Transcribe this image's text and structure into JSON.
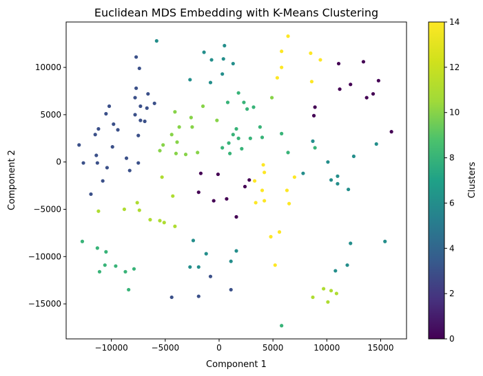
{
  "chart_data": {
    "type": "scatter",
    "title": "Euclidean MDS Embedding with K-Means Clustering",
    "xlabel": "Component 1",
    "ylabel": "Component 2",
    "xlim": [
      -14200,
      17400
    ],
    "ylim": [
      -18700,
      14800
    ],
    "xticks": [
      -10000,
      -5000,
      0,
      5000,
      10000,
      15000
    ],
    "xtick_labels": [
      "−10000",
      "−5000",
      "0",
      "5000",
      "10000",
      "15000"
    ],
    "yticks": [
      -15000,
      -10000,
      -5000,
      0,
      5000,
      10000
    ],
    "ytick_labels": [
      "−15000",
      "−10000",
      "−5000",
      "0",
      "5000",
      "10000"
    ],
    "grid": false,
    "colormap": "viridis",
    "colorbar": {
      "label": "Clusters",
      "range": [
        0,
        14
      ],
      "ticks": [
        0,
        2,
        4,
        6,
        8,
        10,
        12,
        14
      ],
      "tick_labels": [
        "0",
        "2",
        "4",
        "6",
        "8",
        "10",
        "12",
        "14"
      ]
    },
    "points": [
      {
        "x": 6400,
        "y": 13300,
        "c": 14
      },
      {
        "x": 5800,
        "y": 11700,
        "c": 14
      },
      {
        "x": 8500,
        "y": 11500,
        "c": 14
      },
      {
        "x": 9400,
        "y": 10800,
        "c": 14
      },
      {
        "x": 5800,
        "y": 10000,
        "c": 14
      },
      {
        "x": 5400,
        "y": 8900,
        "c": 14
      },
      {
        "x": 8600,
        "y": 8500,
        "c": 14
      },
      {
        "x": 4100,
        "y": -300,
        "c": 14
      },
      {
        "x": 4200,
        "y": -1100,
        "c": 14
      },
      {
        "x": 3300,
        "y": -2000,
        "c": 14
      },
      {
        "x": 7000,
        "y": -1600,
        "c": 14
      },
      {
        "x": 4000,
        "y": -3000,
        "c": 14
      },
      {
        "x": 6300,
        "y": -3000,
        "c": 14
      },
      {
        "x": 3400,
        "y": -4300,
        "c": 14
      },
      {
        "x": 4200,
        "y": -4100,
        "c": 14
      },
      {
        "x": 6500,
        "y": -4400,
        "c": 14
      },
      {
        "x": 5600,
        "y": -7400,
        "c": 14
      },
      {
        "x": 4800,
        "y": -7900,
        "c": 14
      },
      {
        "x": 5200,
        "y": -10900,
        "c": 14
      },
      {
        "x": 13400,
        "y": 10600,
        "c": 0
      },
      {
        "x": 11100,
        "y": 10400,
        "c": 0
      },
      {
        "x": 14800,
        "y": 8600,
        "c": 0
      },
      {
        "x": 12200,
        "y": 8200,
        "c": 0
      },
      {
        "x": 11200,
        "y": 7700,
        "c": 0
      },
      {
        "x": 14300,
        "y": 7200,
        "c": 0
      },
      {
        "x": 13700,
        "y": 6800,
        "c": 0
      },
      {
        "x": 8900,
        "y": 5800,
        "c": 0
      },
      {
        "x": 8800,
        "y": 4900,
        "c": 0
      },
      {
        "x": 16000,
        "y": 3200,
        "c": 0
      },
      {
        "x": 2800,
        "y": -1900,
        "c": 0
      },
      {
        "x": 2400,
        "y": -2600,
        "c": 0
      },
      {
        "x": -1700,
        "y": -1200,
        "c": 0
      },
      {
        "x": -100,
        "y": -1300,
        "c": 0
      },
      {
        "x": -1900,
        "y": -3200,
        "c": 0
      },
      {
        "x": -500,
        "y": -4100,
        "c": 0
      },
      {
        "x": 700,
        "y": -3900,
        "c": 0
      },
      {
        "x": 1600,
        "y": -5800,
        "c": 0
      },
      {
        "x": -7700,
        "y": 11100,
        "c": 3
      },
      {
        "x": -7400,
        "y": 9900,
        "c": 3
      },
      {
        "x": -7700,
        "y": 7800,
        "c": 3
      },
      {
        "x": -6600,
        "y": 7200,
        "c": 3
      },
      {
        "x": -7800,
        "y": 6800,
        "c": 3
      },
      {
        "x": -6000,
        "y": 6200,
        "c": 3
      },
      {
        "x": -7300,
        "y": 5900,
        "c": 3
      },
      {
        "x": -6700,
        "y": 5700,
        "c": 3
      },
      {
        "x": -7800,
        "y": 5000,
        "c": 3
      },
      {
        "x": -7300,
        "y": 4400,
        "c": 3
      },
      {
        "x": -6900,
        "y": 4300,
        "c": 3
      },
      {
        "x": -7500,
        "y": 2800,
        "c": 3
      },
      {
        "x": -10200,
        "y": 5900,
        "c": 3
      },
      {
        "x": -10500,
        "y": 5100,
        "c": 3
      },
      {
        "x": -9800,
        "y": 4000,
        "c": 3
      },
      {
        "x": -11200,
        "y": 3500,
        "c": 3
      },
      {
        "x": -9400,
        "y": 3400,
        "c": 3
      },
      {
        "x": -11500,
        "y": 2900,
        "c": 3
      },
      {
        "x": -13000,
        "y": 1800,
        "c": 3
      },
      {
        "x": -9900,
        "y": 1600,
        "c": 3
      },
      {
        "x": -11400,
        "y": 700,
        "c": 3
      },
      {
        "x": -8600,
        "y": 400,
        "c": 3
      },
      {
        "x": -12600,
        "y": -100,
        "c": 3
      },
      {
        "x": -11300,
        "y": -100,
        "c": 3
      },
      {
        "x": -7500,
        "y": -100,
        "c": 3
      },
      {
        "x": -10400,
        "y": -600,
        "c": 3
      },
      {
        "x": -8300,
        "y": -900,
        "c": 3
      },
      {
        "x": -10800,
        "y": -2000,
        "c": 3
      },
      {
        "x": -11900,
        "y": -3400,
        "c": 3
      },
      {
        "x": -1900,
        "y": -14200,
        "c": 3
      },
      {
        "x": -4400,
        "y": -14300,
        "c": 3
      },
      {
        "x": -800,
        "y": -12100,
        "c": 3
      },
      {
        "x": 1100,
        "y": -13500,
        "c": 3
      },
      {
        "x": -5800,
        "y": 12800,
        "c": 6
      },
      {
        "x": 500,
        "y": 12300,
        "c": 6
      },
      {
        "x": -1400,
        "y": 11600,
        "c": 6
      },
      {
        "x": -700,
        "y": 10800,
        "c": 6
      },
      {
        "x": 400,
        "y": 10900,
        "c": 6
      },
      {
        "x": 1300,
        "y": 10400,
        "c": 6
      },
      {
        "x": 300,
        "y": 9300,
        "c": 6
      },
      {
        "x": -2700,
        "y": 8700,
        "c": 6
      },
      {
        "x": -800,
        "y": 8400,
        "c": 6
      },
      {
        "x": 8700,
        "y": 2200,
        "c": 6
      },
      {
        "x": 14600,
        "y": 1900,
        "c": 6
      },
      {
        "x": 12500,
        "y": 600,
        "c": 6
      },
      {
        "x": 10100,
        "y": 0,
        "c": 6
      },
      {
        "x": 7800,
        "y": -1200,
        "c": 6
      },
      {
        "x": 11000,
        "y": -1500,
        "c": 6
      },
      {
        "x": 10400,
        "y": -1900,
        "c": 6
      },
      {
        "x": 11000,
        "y": -2300,
        "c": 6
      },
      {
        "x": 12000,
        "y": -2900,
        "c": 6
      },
      {
        "x": -2400,
        "y": -8300,
        "c": 6
      },
      {
        "x": -1200,
        "y": -9700,
        "c": 6
      },
      {
        "x": 1600,
        "y": -9400,
        "c": 6
      },
      {
        "x": 1100,
        "y": -10500,
        "c": 6
      },
      {
        "x": -2700,
        "y": -11100,
        "c": 6
      },
      {
        "x": -1900,
        "y": -11100,
        "c": 6
      },
      {
        "x": 12200,
        "y": -8600,
        "c": 6
      },
      {
        "x": 15400,
        "y": -8400,
        "c": 6
      },
      {
        "x": 11900,
        "y": -10900,
        "c": 6
      },
      {
        "x": 10800,
        "y": -11500,
        "c": 6
      },
      {
        "x": 1800,
        "y": 7300,
        "c": 8
      },
      {
        "x": 800,
        "y": 6300,
        "c": 8
      },
      {
        "x": 2300,
        "y": 6300,
        "c": 8
      },
      {
        "x": 2600,
        "y": 5600,
        "c": 8
      },
      {
        "x": 3200,
        "y": 5800,
        "c": 8
      },
      {
        "x": 3800,
        "y": 3700,
        "c": 8
      },
      {
        "x": 1600,
        "y": 3500,
        "c": 8
      },
      {
        "x": 1300,
        "y": 2900,
        "c": 8
      },
      {
        "x": 4000,
        "y": 2600,
        "c": 8
      },
      {
        "x": 1800,
        "y": 2500,
        "c": 8
      },
      {
        "x": 2900,
        "y": 2500,
        "c": 8
      },
      {
        "x": 900,
        "y": 2000,
        "c": 8
      },
      {
        "x": 300,
        "y": 1500,
        "c": 8
      },
      {
        "x": 1000,
        "y": 900,
        "c": 8
      },
      {
        "x": 2100,
        "y": 1400,
        "c": 8
      },
      {
        "x": 5800,
        "y": 3000,
        "c": 8
      },
      {
        "x": 8900,
        "y": 1500,
        "c": 8
      },
      {
        "x": 6400,
        "y": 1000,
        "c": 8
      },
      {
        "x": -12700,
        "y": -8400,
        "c": 8
      },
      {
        "x": -11300,
        "y": -9100,
        "c": 8
      },
      {
        "x": -10500,
        "y": -9500,
        "c": 8
      },
      {
        "x": -10600,
        "y": -10900,
        "c": 8
      },
      {
        "x": -9600,
        "y": -11000,
        "c": 8
      },
      {
        "x": -7900,
        "y": -11300,
        "c": 8
      },
      {
        "x": -11100,
        "y": -11600,
        "c": 8
      },
      {
        "x": -8700,
        "y": -11600,
        "c": 8
      },
      {
        "x": -8400,
        "y": -13500,
        "c": 8
      },
      {
        "x": 5800,
        "y": -17300,
        "c": 8
      },
      {
        "x": 4900,
        "y": 6800,
        "c": 10
      },
      {
        "x": -1500,
        "y": 5900,
        "c": 10
      },
      {
        "x": -4100,
        "y": 5300,
        "c": 10
      },
      {
        "x": -2600,
        "y": 4700,
        "c": 10
      },
      {
        "x": -200,
        "y": 4400,
        "c": 10
      },
      {
        "x": -3700,
        "y": 3700,
        "c": 10
      },
      {
        "x": -2500,
        "y": 3700,
        "c": 10
      },
      {
        "x": -4400,
        "y": 2900,
        "c": 10
      },
      {
        "x": -3900,
        "y": 2100,
        "c": 10
      },
      {
        "x": -5200,
        "y": 1800,
        "c": 10
      },
      {
        "x": -5500,
        "y": 1200,
        "c": 10
      },
      {
        "x": -2000,
        "y": 1000,
        "c": 10
      },
      {
        "x": -4000,
        "y": 900,
        "c": 10
      },
      {
        "x": -3100,
        "y": 800,
        "c": 10
      },
      {
        "x": -5300,
        "y": -1600,
        "c": 11
      },
      {
        "x": -4300,
        "y": -3600,
        "c": 11
      },
      {
        "x": -7600,
        "y": -4300,
        "c": 11
      },
      {
        "x": -8800,
        "y": -5000,
        "c": 11
      },
      {
        "x": -7400,
        "y": -5100,
        "c": 11
      },
      {
        "x": -11200,
        "y": -5200,
        "c": 11
      },
      {
        "x": -6400,
        "y": -6100,
        "c": 11
      },
      {
        "x": -5500,
        "y": -6200,
        "c": 11
      },
      {
        "x": -5100,
        "y": -6400,
        "c": 11
      },
      {
        "x": -4100,
        "y": -6800,
        "c": 11
      },
      {
        "x": 9700,
        "y": -13400,
        "c": 11
      },
      {
        "x": 10400,
        "y": -13600,
        "c": 11
      },
      {
        "x": 10900,
        "y": -13900,
        "c": 11
      },
      {
        "x": 8700,
        "y": -14300,
        "c": 11
      },
      {
        "x": 10100,
        "y": -14800,
        "c": 11
      }
    ]
  }
}
